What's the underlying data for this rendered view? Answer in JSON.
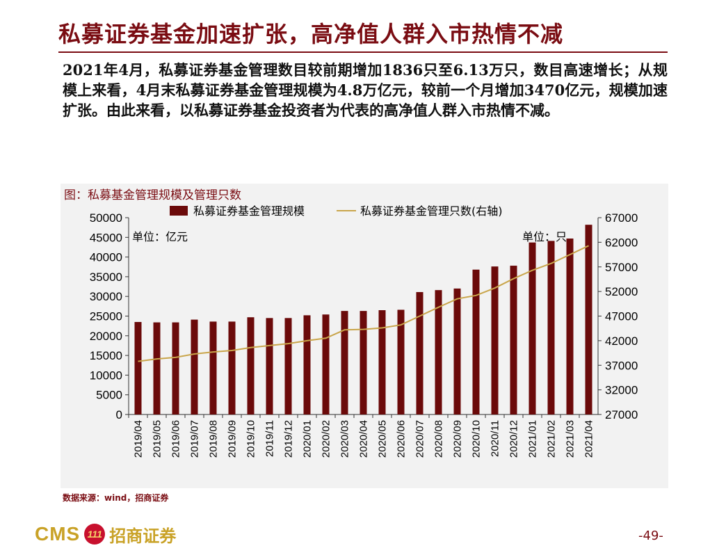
{
  "page": {
    "title": "私募证券基金加速扩张，高净值人群入市热情不减",
    "description": "2021年4月，私募证券基金管理数目较前期增加1836只至6.13万只，数目高速增长；从规模上来看，4月末私募证券基金管理规模为4.8万亿元，较前一个月增加3470亿元，规模加速扩张。由此来看，以私募证券基金投资者为代表的高净值人群入市热情不减。",
    "figure_caption": "图：私募基金管理规模及管理只数",
    "source": "数据来源：wind，招商证券",
    "page_number": "-49-",
    "logo": {
      "latin": "CMS",
      "mark": "111",
      "chinese": "招商证券"
    }
  },
  "chart_data": {
    "type": "bar",
    "combo": "bar + line (secondary y-axis)",
    "categories": [
      "2019/04",
      "2019/05",
      "2019/06",
      "2019/07",
      "2019/08",
      "2019/09",
      "2019/10",
      "2019/11",
      "2019/12",
      "2020/01",
      "2020/02",
      "2020/03",
      "2020/04",
      "2020/05",
      "2020/06",
      "2020/07",
      "2020/08",
      "2020/09",
      "2020/10",
      "2020/11",
      "2020/12",
      "2021/01",
      "2021/02",
      "2021/03",
      "2021/04"
    ],
    "series": [
      {
        "name": "私募证券基金管理规模",
        "type": "bar",
        "axis": "left",
        "color": "#6b0a0a",
        "values": [
          23500,
          23400,
          23400,
          24100,
          23600,
          23600,
          24700,
          24500,
          24500,
          25200,
          25400,
          26300,
          26300,
          26500,
          26600,
          31100,
          31600,
          32000,
          36800,
          37600,
          37800,
          43700,
          44100,
          44700,
          48200
        ]
      },
      {
        "name": "私募证券基金管理只数(右轴)",
        "type": "line",
        "axis": "right",
        "color": "#c9a54a",
        "values": [
          37800,
          38300,
          38600,
          39300,
          39700,
          40000,
          40600,
          41000,
          41400,
          42000,
          42500,
          44200,
          44300,
          44600,
          45200,
          47000,
          48800,
          50500,
          51200,
          52700,
          54600,
          56300,
          57700,
          59500,
          61300
        ]
      }
    ],
    "y_left": {
      "min": 0,
      "max": 50000,
      "step": 5000,
      "unit_label": "单位：亿元"
    },
    "y_right": {
      "min": 27000,
      "max": 67000,
      "step": 5000,
      "unit_label": "单位：只"
    },
    "legend_placement": "top",
    "grid": false,
    "background_color": "#f2f2f2"
  }
}
